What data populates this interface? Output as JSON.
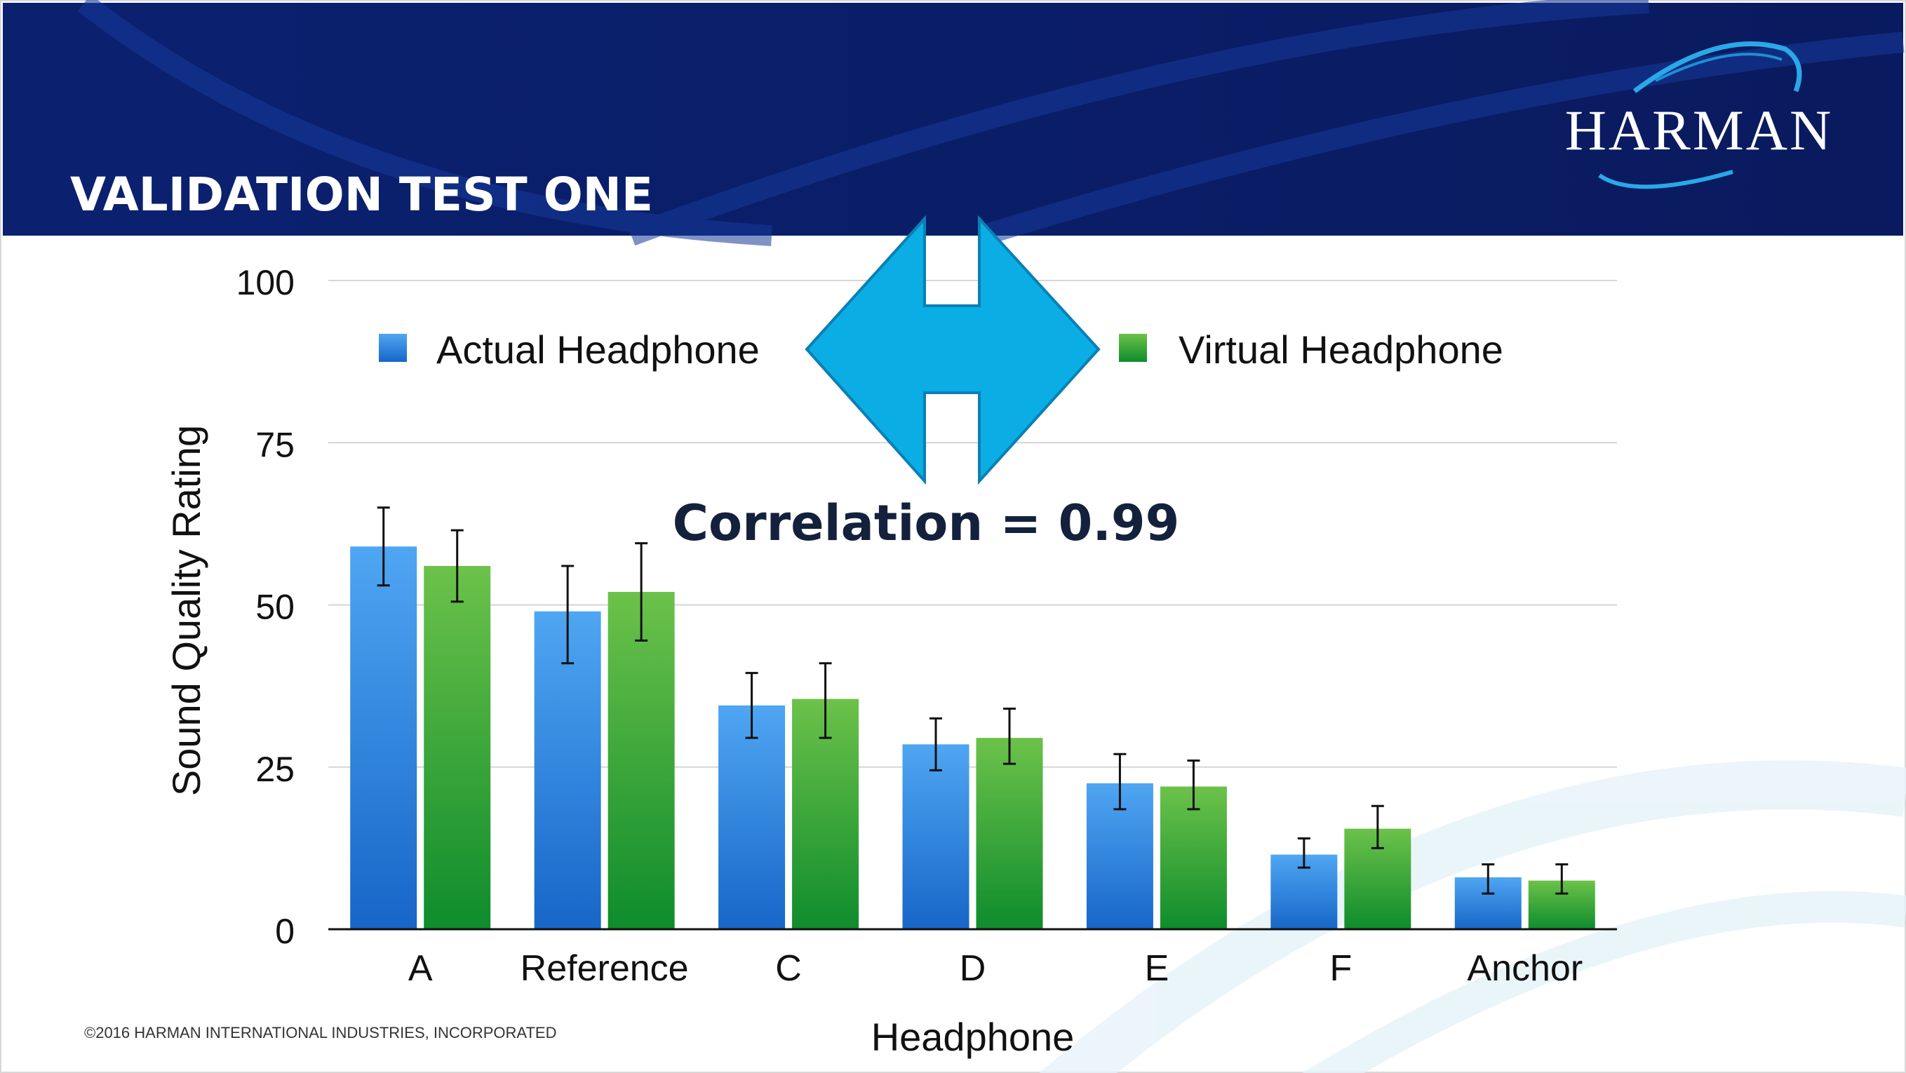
{
  "slide": {
    "title": "VALIDATION TEST ONE",
    "logo_text": "HARMAN",
    "correlation_text": "Correlation = 0.99",
    "footer": "©2016 HARMAN INTERNATIONAL INDUSTRIES, INCORPORATED"
  },
  "colors": {
    "header_bg": "#0a1e6e",
    "actual": "#2e84e0",
    "virtual": "#3aa63a",
    "arrow": "#0aaee4",
    "title_dark": "#14213d"
  },
  "chart_data": {
    "type": "bar",
    "xlabel": "Headphone",
    "ylabel": "Sound Quality Rating",
    "ylim": [
      0,
      100
    ],
    "yticks": [
      0,
      25,
      50,
      75,
      100
    ],
    "grid": true,
    "legend_position": "top",
    "categories": [
      "A",
      "Reference",
      "C",
      "D",
      "E",
      "F",
      "Anchor"
    ],
    "series": [
      {
        "name": "Actual Headphone",
        "values": [
          59,
          49,
          34.5,
          28.5,
          22.5,
          11.5,
          8
        ],
        "error_low": [
          53,
          41,
          29.5,
          24.5,
          18.5,
          9.5,
          5.5
        ],
        "error_high": [
          65,
          56,
          39.5,
          32.5,
          27,
          14,
          10
        ]
      },
      {
        "name": "Virtual Headphone",
        "values": [
          56,
          52,
          35.5,
          29.5,
          22,
          15.5,
          7.5
        ],
        "error_low": [
          50.5,
          44.5,
          29.5,
          25.5,
          18.5,
          12.5,
          5.5
        ],
        "error_high": [
          61.5,
          59.5,
          41,
          34,
          26,
          19,
          10
        ]
      }
    ]
  }
}
